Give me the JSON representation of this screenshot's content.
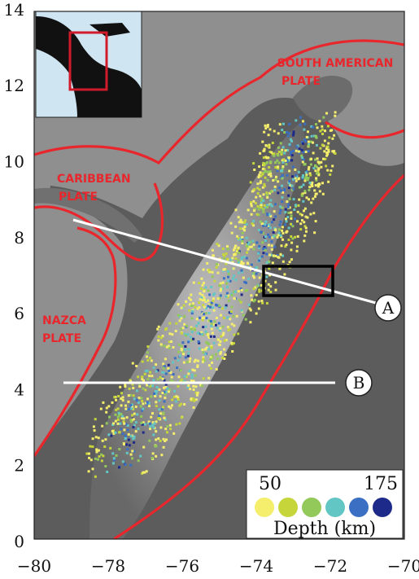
{
  "map": {
    "x_ticks": [
      "−80",
      "−78",
      "−76",
      "−74",
      "−72",
      "−70"
    ],
    "y_ticks": [
      "0",
      "2",
      "4",
      "6",
      "8",
      "10",
      "12",
      "14"
    ],
    "plates": {
      "south_american_line1": "SOUTH AMERICAN",
      "south_american_line2": "PLATE",
      "caribbean_line1": "CARIBBEAN",
      "caribbean_line2": "PLATE",
      "nazca_line1": "NAZCA",
      "nazca_line2": "PLATE"
    },
    "profiles": {
      "a": "A",
      "b": "B"
    },
    "legend": {
      "min": "50",
      "max": "175",
      "title": "Depth (km)",
      "colors": [
        "#f4ee6c",
        "#c6d63a",
        "#93c85a",
        "#62c6c4",
        "#3a6fc4",
        "#1e2a8a"
      ]
    },
    "colors": {
      "plate_boundary": "#e8262c",
      "ocean": "#8f8f8f",
      "profile_line": "#ffffff",
      "study_box": "#000000"
    }
  }
}
